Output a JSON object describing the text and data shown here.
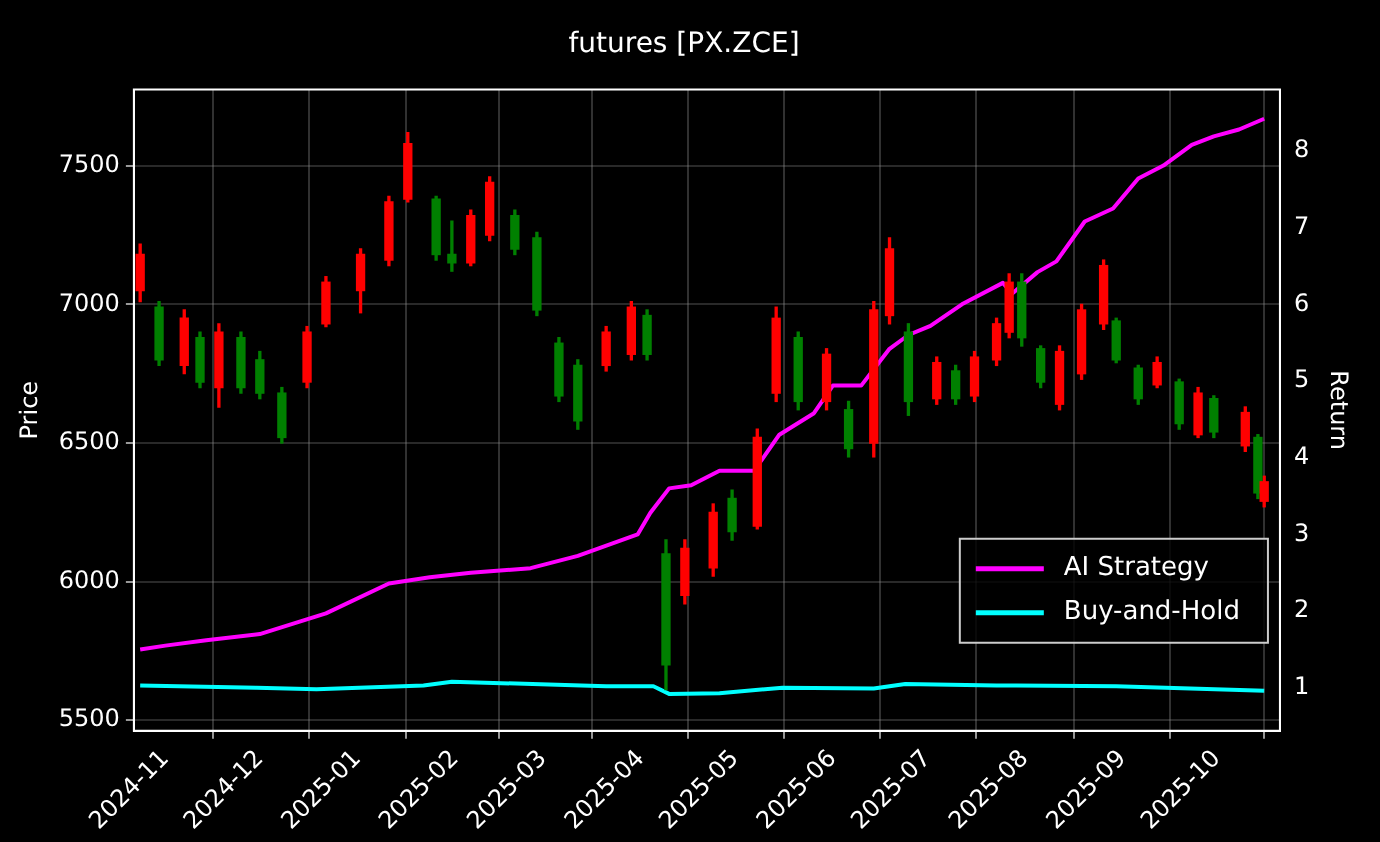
{
  "chart_data": {
    "type": "candlestick",
    "title": "futures [PX.ZCE]",
    "ylabel": "Price",
    "y2label": "Return",
    "x": [
      "2024-10-24",
      "2024-10-30",
      "2024-11-07",
      "2024-11-12",
      "2024-11-18",
      "2024-11-25",
      "2024-12-01",
      "2024-12-08",
      "2024-12-16",
      "2024-12-22",
      "2025-01-02",
      "2025-01-11",
      "2025-01-17",
      "2025-01-26",
      "2025-01-31",
      "2025-02-06",
      "2025-02-12",
      "2025-02-20",
      "2025-02-27",
      "2025-03-06",
      "2025-03-12",
      "2025-03-21",
      "2025-03-29",
      "2025-04-03",
      "2025-04-09",
      "2025-04-15",
      "2025-04-24",
      "2025-04-30",
      "2025-05-08",
      "2025-05-14",
      "2025-05-21",
      "2025-05-30",
      "2025-06-06",
      "2025-06-14",
      "2025-06-19",
      "2025-06-25",
      "2025-07-04",
      "2025-07-10",
      "2025-07-16",
      "2025-07-23",
      "2025-07-27",
      "2025-07-31",
      "2025-08-06",
      "2025-08-12",
      "2025-08-19",
      "2025-08-26",
      "2025-08-30",
      "2025-09-06",
      "2025-09-12",
      "2025-09-19",
      "2025-09-25",
      "2025-09-30",
      "2025-10-10",
      "2025-10-14",
      "2025-10-16"
    ],
    "ohlc": [
      [
        7050,
        7217,
        7010,
        7180
      ],
      [
        6990,
        7010,
        6780,
        6800
      ],
      [
        6780,
        6980,
        6750,
        6950
      ],
      [
        6880,
        6900,
        6700,
        6720
      ],
      [
        6700,
        6930,
        6630,
        6900
      ],
      [
        6880,
        6900,
        6680,
        6700
      ],
      [
        6800,
        6830,
        6660,
        6680
      ],
      [
        6680,
        6700,
        6500,
        6520
      ],
      [
        6720,
        6920,
        6700,
        6900
      ],
      [
        6930,
        7100,
        6920,
        7080
      ],
      [
        7050,
        7200,
        6970,
        7180
      ],
      [
        7160,
        7390,
        7140,
        7370
      ],
      [
        7380,
        7620,
        7370,
        7580
      ],
      [
        7380,
        7390,
        7160,
        7180
      ],
      [
        7180,
        7300,
        7120,
        7150
      ],
      [
        7150,
        7340,
        7140,
        7320
      ],
      [
        7250,
        7460,
        7230,
        7440
      ],
      [
        7320,
        7340,
        7180,
        7200
      ],
      [
        7240,
        7260,
        6960,
        6980
      ],
      [
        6860,
        6880,
        6650,
        6670
      ],
      [
        6780,
        6800,
        6550,
        6580
      ],
      [
        6780,
        6920,
        6760,
        6900
      ],
      [
        6820,
        7010,
        6800,
        6990
      ],
      [
        6960,
        6980,
        6800,
        6820
      ],
      [
        6100,
        6150,
        5610,
        5700
      ],
      [
        5950,
        6150,
        5920,
        6120
      ],
      [
        6050,
        6280,
        6020,
        6250
      ],
      [
        6300,
        6330,
        6150,
        6180
      ],
      [
        6200,
        6550,
        6190,
        6520
      ],
      [
        6680,
        6990,
        6650,
        6950
      ],
      [
        6880,
        6900,
        6620,
        6650
      ],
      [
        6650,
        6840,
        6620,
        6820
      ],
      [
        6620,
        6650,
        6450,
        6480
      ],
      [
        6500,
        7010,
        6450,
        6980
      ],
      [
        6960,
        7240,
        6930,
        7200
      ],
      [
        6900,
        6930,
        6600,
        6650
      ],
      [
        6660,
        6810,
        6640,
        6790
      ],
      [
        6760,
        6780,
        6640,
        6660
      ],
      [
        6670,
        6830,
        6650,
        6810
      ],
      [
        6800,
        6950,
        6780,
        6930
      ],
      [
        6900,
        7110,
        6880,
        7080
      ],
      [
        7080,
        7110,
        6850,
        6880
      ],
      [
        6840,
        6850,
        6700,
        6720
      ],
      [
        6640,
        6850,
        6620,
        6830
      ],
      [
        6750,
        7000,
        6730,
        6980
      ],
      [
        6930,
        7160,
        6910,
        7140
      ],
      [
        6940,
        6950,
        6790,
        6800
      ],
      [
        6770,
        6780,
        6640,
        6660
      ],
      [
        6710,
        6810,
        6700,
        6790
      ],
      [
        6720,
        6730,
        6550,
        6570
      ],
      [
        6530,
        6700,
        6520,
        6680
      ],
      [
        6660,
        6670,
        6520,
        6540
      ],
      [
        6490,
        6630,
        6470,
        6610
      ],
      [
        6520,
        6530,
        6300,
        6320
      ],
      [
        6290,
        6380,
        6270,
        6360
      ]
    ],
    "colors": [
      "#ff0000",
      "#008000",
      "#ff0000",
      "#008000",
      "#ff0000",
      "#008000",
      "#008000",
      "#008000",
      "#ff0000",
      "#ff0000",
      "#ff0000",
      "#ff0000",
      "#ff0000",
      "#008000",
      "#008000",
      "#ff0000",
      "#ff0000",
      "#008000",
      "#008000",
      "#008000",
      "#008000",
      "#ff0000",
      "#ff0000",
      "#008000",
      "#008000",
      "#ff0000",
      "#ff0000",
      "#008000",
      "#ff0000",
      "#ff0000",
      "#008000",
      "#ff0000",
      "#008000",
      "#ff0000",
      "#ff0000",
      "#008000",
      "#ff0000",
      "#008000",
      "#ff0000",
      "#ff0000",
      "#ff0000",
      "#008000",
      "#008000",
      "#ff0000",
      "#ff0000",
      "#ff0000",
      "#008000",
      "#008000",
      "#ff0000",
      "#008000",
      "#ff0000",
      "#008000",
      "#ff0000",
      "#008000",
      "#ff0000"
    ],
    "series": [
      {
        "name": "AI Strategy",
        "type": "line",
        "axis": "y2",
        "color": "#ff00ff",
        "x": [
          "2024-10-24",
          "2024-11-01",
          "2024-11-14",
          "2024-12-01",
          "2024-12-22",
          "2025-01-11",
          "2025-01-24",
          "2025-02-06",
          "2025-02-25",
          "2025-03-12",
          "2025-03-31",
          "2025-04-04",
          "2025-04-10",
          "2025-04-17",
          "2025-04-26",
          "2025-05-07",
          "2025-05-15",
          "2025-05-26",
          "2025-06-01",
          "2025-06-10",
          "2025-06-19",
          "2025-06-25",
          "2025-07-02",
          "2025-07-12",
          "2025-07-25",
          "2025-07-28",
          "2025-08-05",
          "2025-08-11",
          "2025-08-20",
          "2025-08-29",
          "2025-09-06",
          "2025-09-14",
          "2025-09-23",
          "2025-09-30",
          "2025-10-08",
          "2025-10-16"
        ],
        "values": [
          1.5,
          1.55,
          1.62,
          1.7,
          1.97,
          2.36,
          2.44,
          2.5,
          2.56,
          2.72,
          3.0,
          3.28,
          3.6,
          3.64,
          3.83,
          3.83,
          4.3,
          4.58,
          4.94,
          4.94,
          5.42,
          5.6,
          5.72,
          6.0,
          6.28,
          6.14,
          6.42,
          6.56,
          7.08,
          7.25,
          7.64,
          7.81,
          8.08,
          8.19,
          8.28,
          8.42
        ]
      },
      {
        "name": "Buy-and-Hold",
        "type": "line",
        "axis": "y2",
        "color": "#00ffff",
        "x": [
          "2024-10-24",
          "2024-11-30",
          "2024-12-19",
          "2025-01-22",
          "2025-01-31",
          "2025-03-21",
          "2025-04-05",
          "2025-04-10",
          "2025-04-26",
          "2025-05-16",
          "2025-06-14",
          "2025-06-24",
          "2025-07-23",
          "2025-08-30",
          "2025-10-16"
        ],
        "values": [
          1.03,
          1.0,
          0.98,
          1.03,
          1.08,
          1.02,
          1.02,
          0.92,
          0.93,
          1.0,
          0.99,
          1.05,
          1.03,
          1.02,
          0.96
        ]
      }
    ],
    "xlim": [
      "2024-10-22",
      "2025-10-21"
    ],
    "xticks": [
      "2024-11",
      "2024-12",
      "2025-01",
      "2025-02",
      "2025-03",
      "2025-04",
      "2025-05",
      "2025-06",
      "2025-07",
      "2025-08",
      "2025-09",
      "2025-10"
    ],
    "ylim": [
      5462,
      7775
    ],
    "yticks": [
      5500,
      6000,
      6500,
      7000,
      7500
    ],
    "y2lim": [
      0.44,
      8.8
    ],
    "y2ticks": [
      1,
      2,
      3,
      4,
      5,
      6,
      7,
      8
    ],
    "grid": true,
    "legend": "bottom right"
  }
}
